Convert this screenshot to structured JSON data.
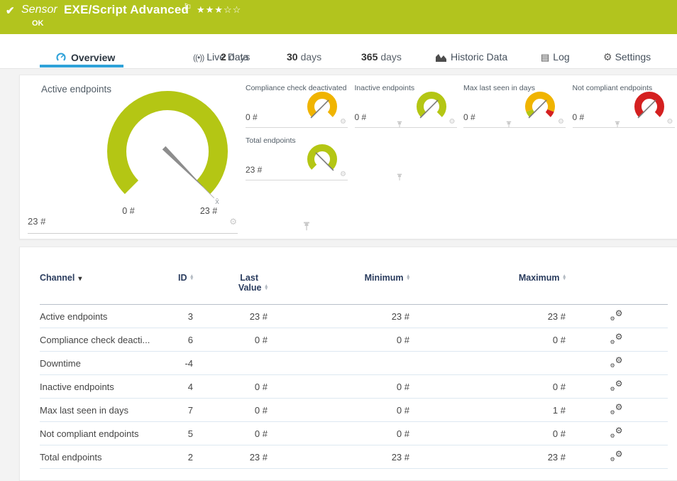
{
  "colors": {
    "header_bg": "#b2c41e",
    "accent_blue": "#2fa2d9",
    "gauge_green": "#b4c614",
    "gauge_yellow": "#f0b400",
    "gauge_red": "#d42020"
  },
  "header": {
    "status_icon": "✔",
    "kind": "Sensor",
    "title": "EXE/Script Advanced",
    "flag": "⚐",
    "stars": "★★★☆☆",
    "status": "OK"
  },
  "tabs": {
    "overview": {
      "label": "Overview"
    },
    "live": {
      "label": "Live Data"
    },
    "d2": {
      "num": "2",
      "unit": "days"
    },
    "d30": {
      "num": "30",
      "unit": "days"
    },
    "d365": {
      "num": "365",
      "unit": "days"
    },
    "historic": {
      "label": "Historic Data"
    },
    "log": {
      "label": "Log"
    },
    "settings": {
      "label": "Settings"
    }
  },
  "gauges": {
    "large": {
      "title": "Active endpoints",
      "value": "23 #",
      "min_label": "0 #",
      "max_label": "23 #",
      "mean_marker": "x̄",
      "segments": [
        {
          "color": "#b4c614",
          "from": 0,
          "to": 1
        }
      ],
      "needle": "max"
    },
    "small": [
      {
        "title": "Compliance check deactivated",
        "value": "0 #",
        "segments": [
          {
            "color": "#f0b400",
            "from": 0,
            "to": 1
          }
        ],
        "needle": "min"
      },
      {
        "title": "Inactive endpoints",
        "value": "0 #",
        "segments": [
          {
            "color": "#b4c614",
            "from": 0,
            "to": 1
          }
        ],
        "needle": "min"
      },
      {
        "title": "Max last seen in days",
        "value": "0 #",
        "segments": [
          {
            "color": "#b4c614",
            "from": 0,
            "to": 0.09
          },
          {
            "color": "#f0b400",
            "from": 0.09,
            "to": 0.91
          },
          {
            "color": "#d42020",
            "from": 0.91,
            "to": 1
          }
        ],
        "needle": "min"
      },
      {
        "title": "Not compliant endpoints",
        "value": "0 #",
        "segments": [
          {
            "color": "#d42020",
            "from": 0,
            "to": 1
          }
        ],
        "needle": "min"
      },
      {
        "title": "Total endpoints",
        "value": "23 #",
        "segments": [
          {
            "color": "#b4c614",
            "from": 0,
            "to": 1
          }
        ],
        "needle": "max"
      }
    ]
  },
  "table": {
    "headers": {
      "channel": "Channel",
      "id": "ID",
      "last_value_line1": "Last",
      "last_value_line2": "Value",
      "minimum": "Minimum",
      "maximum": "Maximum"
    },
    "rows": [
      {
        "channel": "Active endpoints",
        "id": "3",
        "last_value": "23 #",
        "minimum": "23 #",
        "maximum": "23 #"
      },
      {
        "channel": "Compliance check deacti...",
        "id": "6",
        "last_value": "0 #",
        "minimum": "0 #",
        "maximum": "0 #"
      },
      {
        "channel": "Downtime",
        "id": "-4",
        "last_value": "",
        "minimum": "",
        "maximum": ""
      },
      {
        "channel": "Inactive endpoints",
        "id": "4",
        "last_value": "0 #",
        "minimum": "0 #",
        "maximum": "0 #"
      },
      {
        "channel": "Max last seen in days",
        "id": "7",
        "last_value": "0 #",
        "minimum": "0 #",
        "maximum": "1 #"
      },
      {
        "channel": "Not compliant endpoints",
        "id": "5",
        "last_value": "0 #",
        "minimum": "0 #",
        "maximum": "0 #"
      },
      {
        "channel": "Total endpoints",
        "id": "2",
        "last_value": "23 #",
        "minimum": "23 #",
        "maximum": "23 #"
      }
    ]
  }
}
